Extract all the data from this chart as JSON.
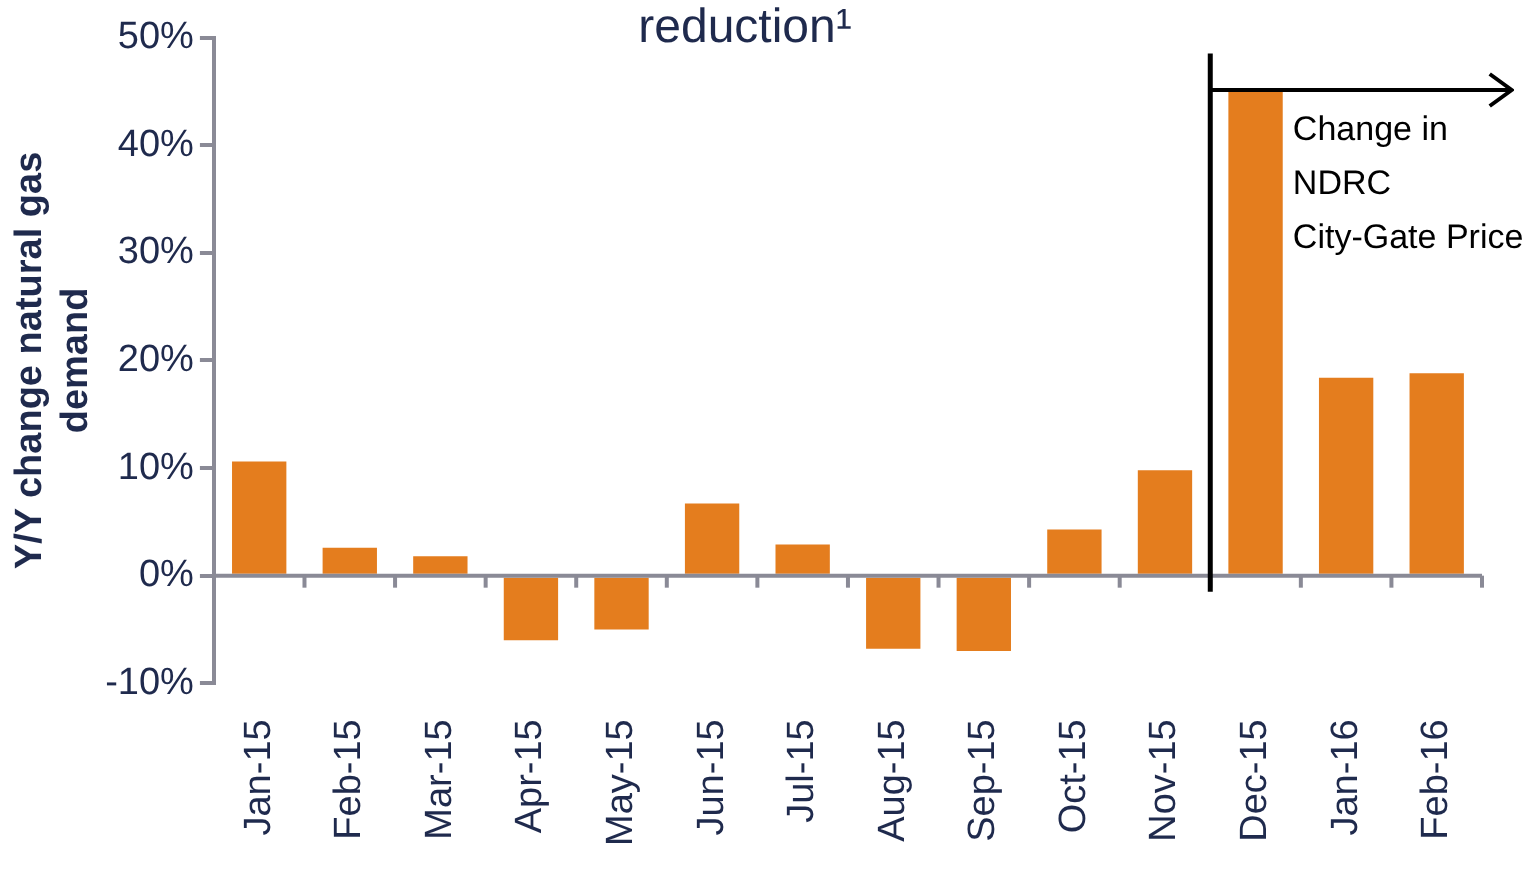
{
  "chart_data": {
    "type": "bar",
    "title": "reduction¹",
    "ylabel": "Y/Y change natural gas demand",
    "categories": [
      "Jan-15",
      "Feb-15",
      "Mar-15",
      "Apr-15",
      "May-15",
      "Jun-15",
      "Jul-15",
      "Aug-15",
      "Sep-15",
      "Oct-15",
      "Nov-15",
      "Dec-15",
      "Jan-16",
      "Feb-16"
    ],
    "values": [
      10.6,
      2.6,
      1.8,
      -6.0,
      -5.0,
      6.7,
      2.9,
      -6.8,
      -7.0,
      4.3,
      9.8,
      45,
      18.4,
      18.8
    ],
    "color": "#e47d1e",
    "ylim": [
      -10,
      50
    ],
    "yticks": [
      {
        "value": -10,
        "label": "-10%"
      },
      {
        "value": 0,
        "label": "0%"
      },
      {
        "value": 10,
        "label": "10%"
      },
      {
        "value": 20,
        "label": "20%"
      },
      {
        "value": 30,
        "label": "30%"
      },
      {
        "value": 40,
        "label": "40%"
      },
      {
        "value": 50,
        "label": "50%"
      }
    ],
    "ref_lines": [
      {
        "axis": "x",
        "value": "Dec-15",
        "label": "Change in NDRC City-Gate Price",
        "color": "#000000"
      }
    ],
    "grid": false,
    "legend": false
  }
}
